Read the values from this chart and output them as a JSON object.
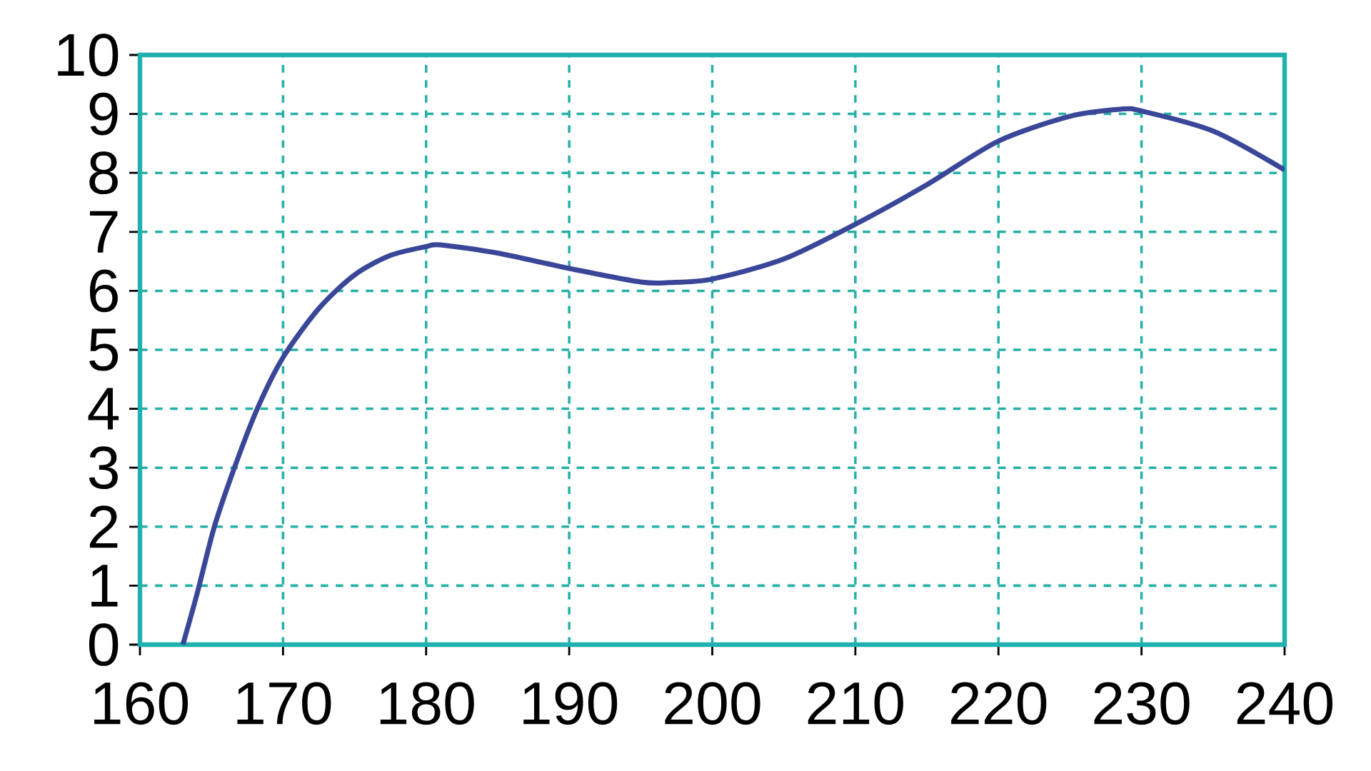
{
  "chart_data": {
    "type": "line",
    "x": [
      163,
      164,
      165.2,
      166.6,
      168.2,
      170,
      172.5,
      175,
      177.5,
      180,
      181,
      185,
      190,
      195,
      197,
      200,
      205,
      210,
      215,
      220,
      225,
      228.5,
      230,
      235,
      240
    ],
    "values": [
      0,
      0.87,
      2,
      3,
      4,
      4.87,
      5.7,
      6.27,
      6.6,
      6.75,
      6.78,
      6.64,
      6.38,
      6.15,
      6.14,
      6.2,
      6.54,
      7.13,
      7.8,
      8.54,
      8.96,
      9.08,
      9.05,
      8.71,
      8.05
    ],
    "color": "#3a4799",
    "xlim": [
      160,
      240
    ],
    "ylim": [
      0,
      10
    ],
    "xticks": [
      160,
      170,
      180,
      190,
      200,
      210,
      220,
      230,
      240
    ],
    "yticks": [
      0,
      1,
      2,
      3,
      4,
      5,
      6,
      7,
      8,
      9,
      10
    ],
    "grid": true,
    "marker": "none",
    "line_style": "solid"
  }
}
